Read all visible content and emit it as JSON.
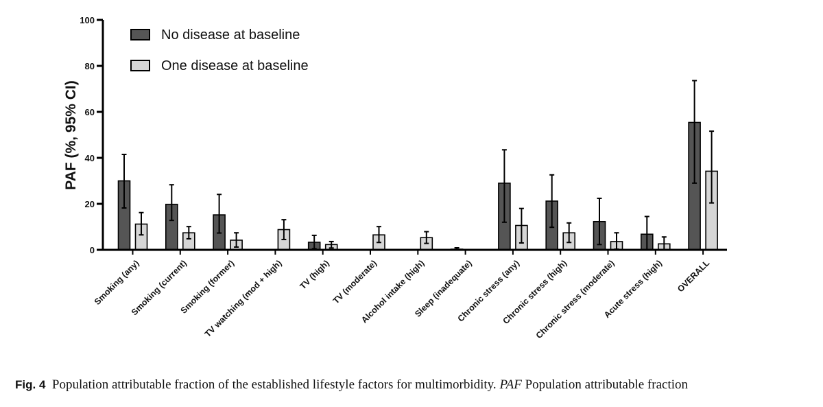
{
  "chart_data": {
    "type": "bar",
    "ylabel": "PAF (%, 95% CI)",
    "ylim": [
      0,
      100
    ],
    "yticks": [
      0,
      20,
      40,
      60,
      80,
      100
    ],
    "legend_position": "top-left",
    "categories": [
      "Smoking (any)",
      "Smoking (current)",
      "Smoking (former)",
      "TV watching (mod + high)",
      "TV (high)",
      "TV (moderate)",
      "Alcohol intake (high)",
      "Sleep (inadequate)",
      "Chronic stress (any)",
      "Chronic stress (high)",
      "Chronic stress (moderate)",
      "Acute stress (high)",
      "OVERALL"
    ],
    "series": [
      {
        "name": "No disease at baseline",
        "color": "#555555",
        "values": [
          30,
          19.8,
          15.2,
          null,
          3.3,
          null,
          null,
          0.3,
          29,
          21.2,
          12.3,
          6.8,
          55.4
        ],
        "ci_low": [
          18.2,
          12.8,
          7.3,
          null,
          0.5,
          null,
          null,
          0,
          12,
          9.8,
          2.3,
          0,
          29
        ],
        "ci_high": [
          41.5,
          28.3,
          24.1,
          null,
          6.3,
          null,
          null,
          0.9,
          43.5,
          32.6,
          22.4,
          14.5,
          73.6
        ]
      },
      {
        "name": "One disease at baseline",
        "color": "#d6d6d6",
        "values": [
          11.2,
          7.4,
          4.2,
          8.8,
          2.3,
          6.5,
          5.3,
          null,
          10.6,
          7.4,
          3.6,
          2.6,
          34.2
        ],
        "ci_low": [
          6.5,
          4.8,
          1.2,
          4.5,
          0.8,
          3.2,
          2.8,
          null,
          3,
          3.2,
          0.3,
          0,
          20.4
        ],
        "ci_high": [
          16.2,
          10.1,
          7.4,
          13.1,
          3.6,
          10.1,
          7.9,
          null,
          18,
          11.7,
          7.4,
          5.6,
          51.6
        ]
      }
    ]
  },
  "caption": {
    "label": "Fig. 4",
    "text_before": "Population attributable fraction of the established lifestyle factors for multimorbidity.",
    "abbr": "PAF",
    "text_after": "Population attributable fraction"
  }
}
